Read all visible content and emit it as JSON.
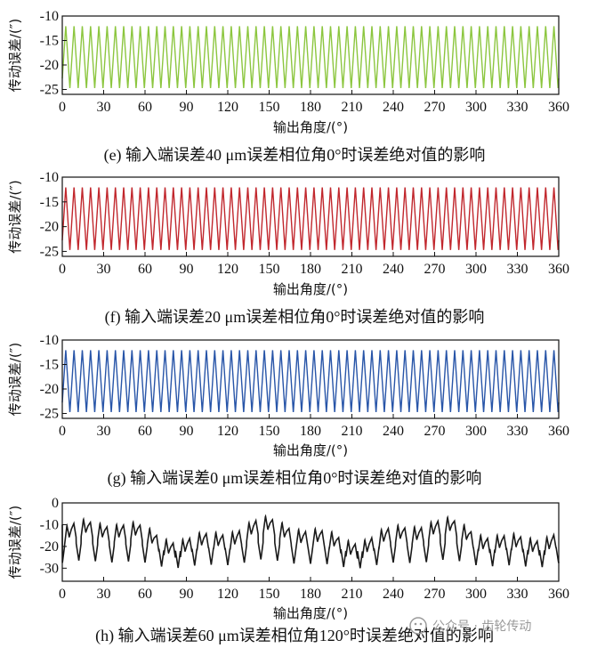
{
  "chart_data": [
    {
      "type": "line",
      "caption": "(e) 输入端误差40 μm误差相位角0°时误差绝对值的影响",
      "xlabel": "输出角度/(°)",
      "ylabel": "传动误差/(″)",
      "xlim": [
        0,
        360
      ],
      "ylim": [
        -26,
        -10
      ],
      "xticks": [
        0,
        30,
        60,
        90,
        120,
        150,
        180,
        210,
        240,
        270,
        300,
        330,
        360
      ],
      "yticks": [
        -10,
        -15,
        -20,
        -25
      ],
      "color": "#8cc63f",
      "series": [
        {
          "pattern": "periodic",
          "cycles": 60,
          "min": -24.8,
          "max": -12.0,
          "start": -19.0,
          "end": -20.0
        }
      ]
    },
    {
      "type": "line",
      "caption": "(f) 输入端误差20 μm误差相位角0°时误差绝对值的影响",
      "xlabel": "输出角度/(°)",
      "ylabel": "传动误差/(″)",
      "xlim": [
        0,
        360
      ],
      "ylim": [
        -26,
        -10
      ],
      "xticks": [
        0,
        30,
        60,
        90,
        120,
        150,
        180,
        210,
        240,
        270,
        300,
        330,
        360
      ],
      "yticks": [
        -10,
        -15,
        -20,
        -25
      ],
      "color": "#c1272d",
      "series": [
        {
          "pattern": "periodic",
          "cycles": 60,
          "min": -24.8,
          "max": -12.0,
          "start": -19.0,
          "end": -20.0
        }
      ]
    },
    {
      "type": "line",
      "caption": "(g) 输入端误差0 μm误差相位角0°时误差绝对值的影响",
      "xlabel": "输出角度/(°)",
      "ylabel": "传动误差/(″)",
      "xlim": [
        0,
        360
      ],
      "ylim": [
        -26,
        -10
      ],
      "xticks": [
        0,
        30,
        60,
        90,
        120,
        150,
        180,
        210,
        240,
        270,
        300,
        330,
        360
      ],
      "yticks": [
        -10,
        -15,
        -20,
        -25
      ],
      "color": "#2855a8",
      "series": [
        {
          "pattern": "periodic",
          "cycles": 60,
          "min": -24.8,
          "max": -12.0,
          "start": -19.0,
          "end": -20.0
        }
      ]
    },
    {
      "type": "line",
      "caption": "(h) 输入端误差60 μm误差相位角120°时误差绝对值的影响",
      "xlabel": "输出角度/(°)",
      "ylabel": "传动误差/(″)",
      "xlim": [
        0,
        360
      ],
      "ylim": [
        -36,
        0
      ],
      "xticks": [
        0,
        30,
        60,
        90,
        120,
        150,
        180,
        210,
        240,
        270,
        300,
        330,
        360
      ],
      "yticks": [
        0,
        -10,
        -20,
        -30
      ],
      "color": "#1a1a1a",
      "series": [
        {
          "pattern": "modulated",
          "cycles": 30,
          "min": -31.0,
          "max": -5.0,
          "start": -10.0,
          "end": -27.0
        }
      ]
    }
  ],
  "watermark": {
    "text": "公众号 · 齿轮传动",
    "icon": "wechat-icon"
  }
}
